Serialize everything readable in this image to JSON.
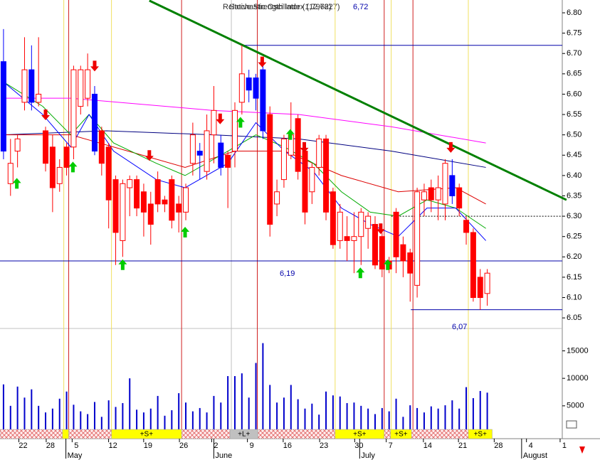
{
  "chart_data": {
    "type": "candlestick",
    "title": "Relative Strength Index (12,7827)",
    "subtitle": "Stochastic Oscillator (1,7962)",
    "open": [
      6.68,
      6.38,
      6.46,
      6.58,
      6.66,
      6.58,
      6.51,
      6.47,
      6.38,
      6.47,
      6.47,
      6.57,
      6.59,
      6.6,
      6.51,
      6.47,
      6.39,
      6.24,
      6.37,
      6.39,
      6.36,
      6.33,
      6.39,
      6.34,
      6.39,
      6.33,
      6.31,
      6.43,
      6.46,
      6.41,
      6.5,
      6.48,
      6.45,
      6.46,
      6.58,
      6.64,
      6.64,
      6.66,
      6.55,
      6.33,
      6.39,
      6.45,
      6.54,
      6.46,
      6.36,
      6.42,
      6.49,
      6.36,
      6.24,
      6.25,
      6.24,
      6.25,
      6.27,
      6.28,
      6.25,
      6.19,
      6.31,
      6.23,
      6.21,
      6.13,
      6.34,
      6.37,
      6.34,
      6.33,
      6.4,
      6.37,
      6.29,
      6.26,
      6.15,
      6.11
    ],
    "high": [
      6.76,
      6.49,
      6.5,
      6.74,
      6.72,
      6.74,
      6.52,
      6.5,
      6.44,
      6.48,
      6.67,
      6.67,
      6.7,
      6.62,
      6.52,
      6.48,
      6.4,
      6.39,
      6.4,
      6.4,
      6.38,
      6.36,
      6.41,
      6.35,
      6.4,
      6.35,
      6.38,
      6.53,
      6.48,
      6.55,
      6.62,
      6.5,
      6.46,
      6.58,
      6.72,
      6.66,
      6.65,
      6.67,
      6.57,
      6.39,
      6.5,
      6.58,
      6.55,
      6.47,
      6.43,
      6.5,
      6.5,
      6.37,
      6.33,
      6.3,
      6.31,
      6.32,
      6.31,
      6.3,
      6.26,
      6.2,
      6.32,
      6.25,
      6.22,
      6.37,
      6.38,
      6.39,
      6.4,
      6.44,
      6.44,
      6.38,
      6.3,
      6.27,
      6.17,
      6.17
    ],
    "low": [
      6.44,
      6.35,
      6.42,
      6.56,
      6.56,
      6.57,
      6.41,
      6.31,
      6.36,
      6.4,
      6.44,
      6.55,
      6.57,
      6.45,
      6.4,
      6.27,
      6.18,
      6.2,
      6.3,
      6.3,
      6.25,
      6.23,
      6.31,
      6.31,
      6.27,
      6.26,
      6.29,
      6.4,
      6.39,
      6.39,
      6.43,
      6.4,
      6.32,
      6.42,
      6.55,
      6.58,
      6.56,
      6.49,
      6.25,
      6.3,
      6.37,
      6.44,
      6.39,
      6.28,
      6.33,
      6.4,
      6.29,
      6.22,
      6.22,
      6.19,
      6.16,
      6.18,
      6.22,
      6.17,
      6.15,
      6.16,
      6.16,
      6.15,
      6.09,
      6.1,
      6.3,
      6.31,
      6.29,
      6.29,
      6.33,
      6.3,
      6.23,
      6.09,
      6.07,
      6.08
    ],
    "close": [
      6.46,
      6.43,
      6.49,
      6.66,
      6.58,
      6.6,
      6.43,
      6.37,
      6.42,
      6.42,
      6.66,
      6.66,
      6.66,
      6.46,
      6.43,
      6.34,
      6.26,
      6.38,
      6.39,
      6.32,
      6.31,
      6.28,
      6.33,
      6.33,
      6.29,
      6.31,
      6.37,
      6.5,
      6.45,
      6.51,
      6.56,
      6.42,
      6.42,
      6.56,
      6.65,
      6.61,
      6.59,
      6.51,
      6.28,
      6.36,
      6.49,
      6.5,
      6.41,
      6.31,
      6.42,
      6.49,
      6.31,
      6.23,
      6.31,
      6.24,
      6.25,
      6.31,
      6.3,
      6.18,
      6.17,
      6.17,
      6.2,
      6.19,
      6.16,
      6.36,
      6.36,
      6.34,
      6.37,
      6.43,
      6.35,
      6.32,
      6.26,
      6.1,
      6.1,
      6.16
    ],
    "highlight": [
      0,
      4,
      13,
      28,
      31,
      35,
      36,
      37,
      64
    ],
    "up_color": "#ffffff",
    "down_color": "#ff0000",
    "highlight_color": "#0000ff",
    "xlim": [
      -0.5,
      79.7
    ],
    "ylim": [
      6.024,
      6.8315
    ],
    "yticks": [
      {
        "value": 6.8,
        "label": "6.80"
      },
      6.75,
      {
        "value": 6.7,
        "label": "6.70"
      },
      6.65,
      {
        "value": 6.6,
        "label": "6.60"
      },
      6.55,
      {
        "value": 6.5,
        "label": "6.50"
      },
      6.45,
      {
        "value": 6.4,
        "label": "6.40"
      },
      6.35,
      {
        "value": 6.3,
        "label": "6.30"
      },
      6.25,
      {
        "value": 6.2,
        "label": "6.20"
      },
      6.15,
      {
        "value": 6.1,
        "label": "6.10"
      },
      6.05
    ],
    "xticks": [
      {
        "value": 2.8,
        "label": "22"
      },
      {
        "value": 6.7,
        "label": "28"
      },
      {
        "value": 10.4,
        "label": "5"
      },
      {
        "value": 15.6,
        "label": "12"
      },
      {
        "value": 20.6,
        "label": "19"
      },
      {
        "value": 25.7,
        "label": "26"
      },
      {
        "value": 30.3,
        "label": "2"
      },
      {
        "value": 35.4,
        "label": "9"
      },
      {
        "value": 40.5,
        "label": "16"
      },
      {
        "value": 45.7,
        "label": "23"
      },
      {
        "value": 50.7,
        "label": "30"
      },
      {
        "value": 55.2,
        "label": "7"
      },
      {
        "value": 60.5,
        "label": "14"
      },
      {
        "value": 65.5,
        "label": "21"
      },
      {
        "value": 70.6,
        "label": "28"
      },
      {
        "value": 75.2,
        "label": "4"
      },
      {
        "value": 80.0,
        "label": "1"
      }
    ],
    "months": [
      {
        "value": 8.9,
        "label": "May"
      },
      {
        "value": 30.0,
        "label": "June"
      },
      {
        "value": 50.8,
        "label": "July"
      },
      {
        "value": 73.9,
        "label": "August"
      }
    ],
    "averages": [
      {
        "color": "#ff00ff",
        "x": [
          0,
          9.6,
          29.9,
          42.1,
          55.3,
          68.8
        ],
        "values": [
          6.59,
          6.59,
          6.56,
          6.55,
          6.52,
          6.48
        ]
      },
      {
        "color": "#000080",
        "x": [
          0,
          14.7,
          29.9,
          42.1,
          55.3,
          68.8
        ],
        "values": [
          6.5,
          6.51,
          6.5,
          6.49,
          6.46,
          6.42
        ]
      },
      {
        "color": "#dd0000",
        "x": [
          0,
          9.6,
          19.8,
          25.9,
          33,
          40.1,
          48.2,
          56.3,
          64.5,
          68.8
        ],
        "values": [
          6.5,
          6.5,
          6.45,
          6.42,
          6.46,
          6.46,
          6.4,
          6.36,
          6.37,
          6.33
        ]
      },
      {
        "color": "#00aa00",
        "x": [
          0,
          5.6,
          9.6,
          12.2,
          15.7,
          21.8,
          25.9,
          32,
          36,
          40.1,
          44.2,
          48.2,
          52.3,
          56.3,
          60.4,
          64.5,
          68.8
        ],
        "values": [
          6.63,
          6.57,
          6.5,
          6.55,
          6.48,
          6.43,
          6.4,
          6.46,
          6.5,
          6.47,
          6.43,
          6.36,
          6.31,
          6.3,
          6.34,
          6.32,
          6.27
        ]
      },
      {
        "color": "#0000ff",
        "x": [
          0,
          5.6,
          9.6,
          12.2,
          15.7,
          21.8,
          25.9,
          32,
          36,
          40.1,
          44.2,
          48.2,
          52.3,
          56.3,
          60.4,
          64.5,
          68.8
        ],
        "values": [
          6.63,
          6.55,
          6.47,
          6.55,
          6.46,
          6.39,
          6.37,
          6.43,
          6.53,
          6.46,
          6.41,
          6.32,
          6.28,
          6.25,
          6.32,
          6.32,
          6.24
        ]
      }
    ],
    "trendline": {
      "color": "#008000",
      "x": [
        20.8,
        80.3
      ],
      "values": [
        6.83,
        6.34
      ]
    },
    "levels": [
      {
        "value": 6.72,
        "label": "6,72",
        "from": 34,
        "color": "#0000aa",
        "style": "solid"
      },
      {
        "value": 6.19,
        "label": "6,19",
        "from": -0.5,
        "color": "#0000aa",
        "style": "solid"
      },
      {
        "value": 6.07,
        "label": "6,07",
        "from": 58.1,
        "color": "#0000aa",
        "style": "solid"
      },
      {
        "value": 6.3,
        "from": 55.3,
        "color": "#000000",
        "style": "dotted"
      }
    ],
    "vlines": [
      {
        "x": 8.6,
        "color": "#f0e060"
      },
      {
        "x": 15.4,
        "color": "#f0e060"
      },
      {
        "x": 47.3,
        "color": "#f0e060"
      },
      {
        "x": 55.3,
        "color": "#f0e060"
      },
      {
        "x": 66.3,
        "color": "#f0e060"
      },
      {
        "x": 32.5,
        "color": "#c0c0c0"
      },
      {
        "x": 9.3,
        "color": "#d02020"
      },
      {
        "x": 25.4,
        "color": "#d02020"
      },
      {
        "x": 36.2,
        "color": "#d02020"
      },
      {
        "x": 54.3,
        "color": "#d02020"
      },
      {
        "x": 58.4,
        "color": "#d02020"
      }
    ],
    "signals_up": {
      "color": "#00cc00",
      "x": [
        1.9,
        9.9,
        17,
        25.9,
        33.8,
        40.9,
        50.9,
        54.8
      ],
      "values": [
        6.38,
        6.42,
        6.18,
        6.26,
        6.53,
        6.5,
        6.16,
        6.18
      ]
    },
    "signals_down": {
      "color": "#ee0000",
      "x": [
        6,
        13,
        20.8,
        30.9,
        36.9,
        42.9,
        53.8,
        63.8
      ],
      "values": [
        6.55,
        6.67,
        6.45,
        6.54,
        6.68,
        6.47,
        6.27,
        6.47
      ]
    },
    "volume": {
      "color": "#0000cc",
      "ylim": [
        0,
        17000
      ],
      "yticks": [
        15000,
        10000,
        5000
      ],
      "values": [
        8900,
        5000,
        8500,
        6500,
        8000,
        5000,
        3800,
        4500,
        6300,
        7600,
        5200,
        4000,
        3500,
        5700,
        3000,
        6000,
        4800,
        5500,
        10000,
        4300,
        3800,
        4500,
        6800,
        3200,
        4200,
        7300,
        5600,
        4000,
        4600,
        3800,
        6800,
        5600,
        10400,
        10400,
        10900,
        6500,
        12800,
        16400,
        8800,
        5600,
        6500,
        8800,
        6200,
        4500,
        5400,
        3400,
        7600,
        6900,
        6700,
        5500,
        5600,
        5000,
        4500,
        3500,
        4600,
        4000,
        6300,
        3000,
        5100,
        4600,
        3800,
        4900,
        4500,
        5100,
        6000,
        4500,
        8400,
        6400,
        7700,
        7400
      ]
    },
    "bands": [
      {
        "start": -0.5,
        "end": 8.4,
        "kind": "hatch"
      },
      {
        "start": 8.4,
        "end": 9.3,
        "kind": "short"
      },
      {
        "start": 9.3,
        "end": 15.4,
        "kind": "hatch"
      },
      {
        "start": 15.4,
        "end": 25.4,
        "kind": "short",
        "label": "+S+"
      },
      {
        "start": 25.4,
        "end": 32.3,
        "kind": "hatch"
      },
      {
        "start": 32.3,
        "end": 36.3,
        "kind": "long",
        "label": "+L+"
      },
      {
        "start": 36.3,
        "end": 47.3,
        "kind": "hatch"
      },
      {
        "start": 47.3,
        "end": 54.3,
        "kind": "short",
        "label": "+S+"
      },
      {
        "start": 54.3,
        "end": 55.2,
        "kind": "hatch"
      },
      {
        "start": 55.2,
        "end": 58.2,
        "kind": "short",
        "label": "+S+"
      },
      {
        "start": 58.2,
        "end": 66.3,
        "kind": "hatch"
      },
      {
        "start": 66.3,
        "end": 69.7,
        "kind": "short",
        "label": "+S+"
      }
    ],
    "band_colors": {
      "short": "#ffff00",
      "long": "#c0c0c0"
    }
  }
}
